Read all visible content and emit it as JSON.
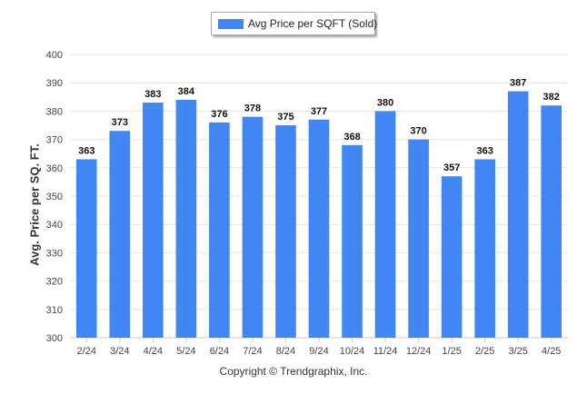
{
  "chart_data": {
    "type": "bar",
    "categories": [
      "2/24",
      "3/24",
      "4/24",
      "5/24",
      "6/24",
      "7/24",
      "8/24",
      "9/24",
      "10/24",
      "11/24",
      "12/24",
      "1/25",
      "2/25",
      "3/25",
      "4/25"
    ],
    "series": [
      {
        "name": "Avg Price per SQFT (Sold)",
        "values": [
          363,
          373,
          383,
          384,
          376,
          378,
          375,
          377,
          368,
          380,
          370,
          357,
          363,
          387,
          382
        ]
      }
    ],
    "ylabel": "Avg. Price per SQ. FT.",
    "xlabel": "",
    "ylim": [
      300,
      400
    ],
    "yticks": [
      300,
      310,
      320,
      330,
      340,
      350,
      360,
      370,
      380,
      390,
      400
    ],
    "grid": true,
    "legend": "top-center",
    "bar_color": "#4286f4"
  },
  "footer": {
    "copyright": "Copyright © Trendgraphix, Inc."
  }
}
